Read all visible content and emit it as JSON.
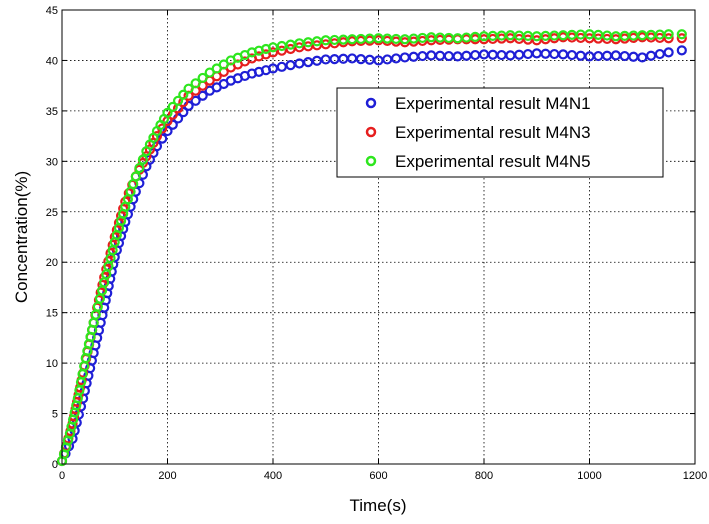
{
  "chart_data": {
    "type": "scatter",
    "title": "",
    "xlabel": "Time(s)",
    "ylabel": "Concentration(%)",
    "xlim": [
      0,
      1200
    ],
    "ylim": [
      0,
      45
    ],
    "xticks": [
      0,
      200,
      400,
      600,
      800,
      1000,
      1200
    ],
    "yticks": [
      0,
      5,
      10,
      15,
      20,
      25,
      30,
      35,
      40,
      45
    ],
    "grid": true,
    "grid_style": "dotted",
    "legend_position": "upper-right",
    "marker": "open-circle",
    "series": [
      {
        "name": "Experimental result M4N1",
        "color": "#1f1fd6",
        "points": [
          [
            0,
            0.3
          ],
          [
            20,
            2.5
          ],
          [
            40,
            6.5
          ],
          [
            60,
            11
          ],
          [
            80,
            15.5
          ],
          [
            100,
            20.5
          ],
          [
            120,
            24
          ],
          [
            140,
            27
          ],
          [
            160,
            29.5
          ],
          [
            180,
            31.5
          ],
          [
            200,
            33
          ],
          [
            240,
            35.5
          ],
          [
            280,
            37
          ],
          [
            320,
            38
          ],
          [
            360,
            38.7
          ],
          [
            400,
            39.2
          ],
          [
            450,
            39.7
          ],
          [
            500,
            40.1
          ],
          [
            550,
            40.2
          ],
          [
            600,
            40.0
          ],
          [
            650,
            40.3
          ],
          [
            700,
            40.5
          ],
          [
            750,
            40.4
          ],
          [
            800,
            40.6
          ],
          [
            850,
            40.5
          ],
          [
            900,
            40.7
          ],
          [
            950,
            40.6
          ],
          [
            1000,
            40.4
          ],
          [
            1050,
            40.5
          ],
          [
            1100,
            40.3
          ],
          [
            1150,
            40.8
          ],
          [
            1175,
            41.0
          ]
        ]
      },
      {
        "name": "Experimental result M4N3",
        "color": "#e61e1e",
        "points": [
          [
            0,
            0.3
          ],
          [
            20,
            4
          ],
          [
            40,
            9
          ],
          [
            60,
            14
          ],
          [
            80,
            18.5
          ],
          [
            100,
            22.5
          ],
          [
            120,
            26
          ],
          [
            140,
            28.5
          ],
          [
            160,
            30.5
          ],
          [
            180,
            32.5
          ],
          [
            200,
            34
          ],
          [
            240,
            36.5
          ],
          [
            280,
            38
          ],
          [
            320,
            39.3
          ],
          [
            360,
            40.2
          ],
          [
            400,
            40.8
          ],
          [
            450,
            41.3
          ],
          [
            500,
            41.6
          ],
          [
            550,
            41.9
          ],
          [
            600,
            42.0
          ],
          [
            650,
            41.8
          ],
          [
            700,
            42.0
          ],
          [
            750,
            42.1
          ],
          [
            800,
            42.1
          ],
          [
            850,
            42.2
          ],
          [
            900,
            42.0
          ],
          [
            950,
            42.3
          ],
          [
            1000,
            42.2
          ],
          [
            1050,
            42.1
          ],
          [
            1100,
            42.3
          ],
          [
            1150,
            42.2
          ],
          [
            1175,
            42.2
          ]
        ]
      },
      {
        "name": "Experimental result M4N5",
        "color": "#2ee61e",
        "points": [
          [
            0,
            0.3
          ],
          [
            15,
            3
          ],
          [
            30,
            6.5
          ],
          [
            45,
            10.5
          ],
          [
            60,
            14
          ],
          [
            80,
            18
          ],
          [
            100,
            22
          ],
          [
            120,
            25.5
          ],
          [
            140,
            28.5
          ],
          [
            160,
            31
          ],
          [
            180,
            33
          ],
          [
            200,
            34.8
          ],
          [
            240,
            37.2
          ],
          [
            280,
            38.8
          ],
          [
            320,
            40.0
          ],
          [
            360,
            40.8
          ],
          [
            400,
            41.3
          ],
          [
            450,
            41.7
          ],
          [
            500,
            42.0
          ],
          [
            550,
            42.1
          ],
          [
            600,
            42.2
          ],
          [
            650,
            42.1
          ],
          [
            700,
            42.3
          ],
          [
            750,
            42.2
          ],
          [
            800,
            42.4
          ],
          [
            850,
            42.5
          ],
          [
            900,
            42.4
          ],
          [
            950,
            42.5
          ],
          [
            1000,
            42.6
          ],
          [
            1050,
            42.4
          ],
          [
            1100,
            42.5
          ],
          [
            1150,
            42.6
          ],
          [
            1175,
            42.6
          ]
        ]
      }
    ]
  }
}
